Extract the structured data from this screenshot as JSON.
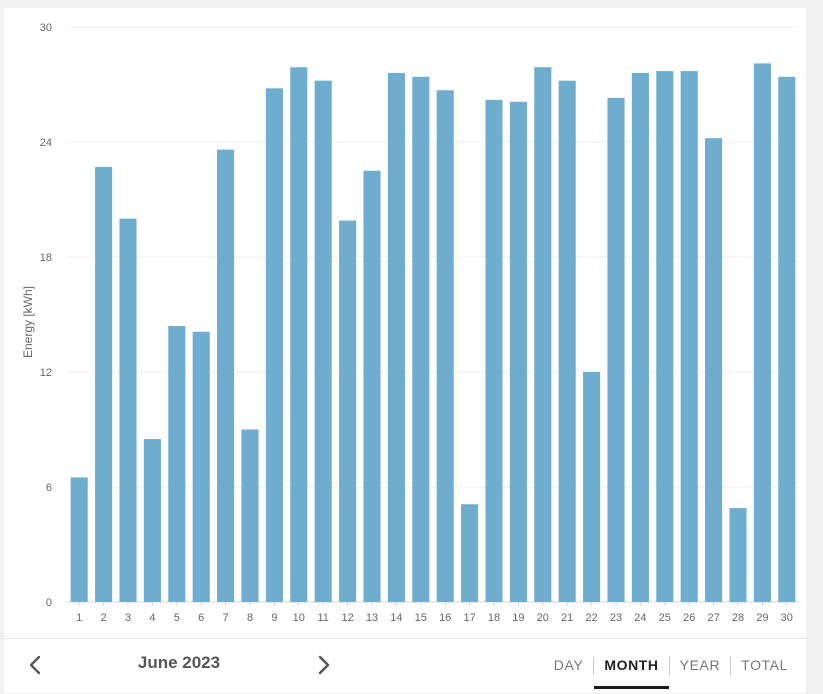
{
  "chart_data": {
    "type": "bar",
    "ylabel": "Energy [kWh]",
    "xlabel": "",
    "ylim": [
      0,
      30
    ],
    "yticks": [
      0,
      6,
      12,
      18,
      24,
      30
    ],
    "grid": true,
    "bar_color": "#6eadcd",
    "categories": [
      "1",
      "2",
      "3",
      "4",
      "5",
      "6",
      "7",
      "8",
      "9",
      "10",
      "11",
      "12",
      "13",
      "14",
      "15",
      "16",
      "17",
      "18",
      "19",
      "20",
      "21",
      "22",
      "23",
      "24",
      "25",
      "26",
      "27",
      "28",
      "29",
      "30"
    ],
    "values": [
      6.5,
      22.7,
      20.0,
      8.5,
      14.4,
      14.1,
      23.6,
      9.0,
      26.8,
      27.9,
      27.2,
      19.9,
      22.5,
      27.6,
      27.4,
      26.7,
      5.1,
      26.2,
      26.1,
      27.9,
      27.2,
      12.0,
      26.3,
      27.6,
      27.7,
      27.7,
      24.2,
      4.9,
      28.1,
      27.4
    ]
  },
  "footer": {
    "period": "June 2023",
    "prev_icon": "chevron-left-icon",
    "next_icon": "chevron-right-icon",
    "tabs": [
      {
        "label": "DAY"
      },
      {
        "label": "MONTH"
      },
      {
        "label": "YEAR"
      },
      {
        "label": "TOTAL"
      }
    ],
    "active_tab": "MONTH"
  }
}
